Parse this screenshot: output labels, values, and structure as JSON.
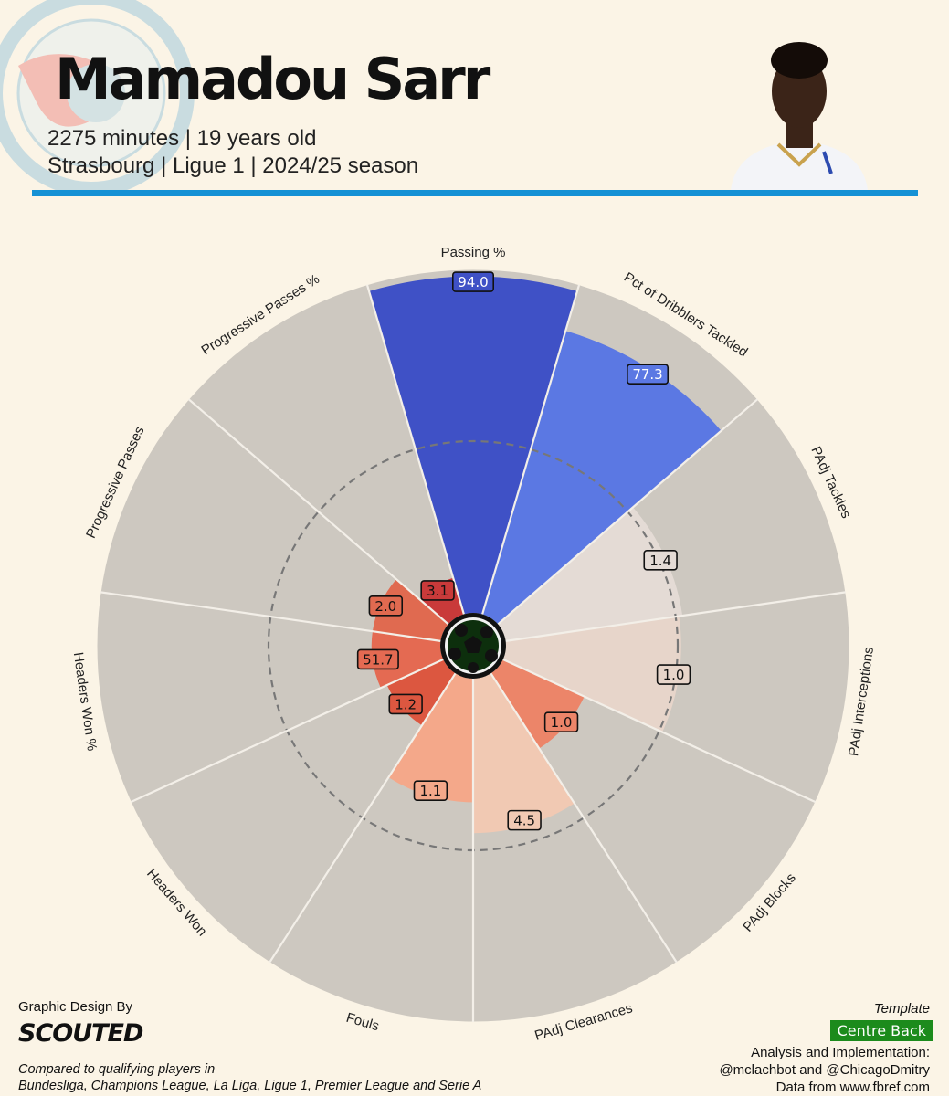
{
  "header": {
    "player_name": "Mamadou Sarr",
    "line1": "2275 minutes | 19 years old",
    "line2": "Strasbourg | Ligue 1 | 2024/25 season",
    "rule_color": "#1591d5"
  },
  "chart_data": {
    "type": "pie",
    "subtype": "radial-pizza",
    "scale": "percentile",
    "rlim": [
      0,
      100
    ],
    "reference_ring": 50,
    "params": [
      {
        "label": "Passing %",
        "value": 94.0,
        "percentile": 98,
        "color": "#3f51c6",
        "value_label": "94.0"
      },
      {
        "label": "Pct of Dribblers Tackled",
        "value": 77.3,
        "percentile": 86,
        "color": "#5b78e3",
        "value_label": "77.3"
      },
      {
        "label": "PAdj Tackles",
        "value": 1.4,
        "percentile": 52,
        "color": "#e4dbd5",
        "value_label": "1.4"
      },
      {
        "label": "PAdj Interceptions",
        "value": 1.0,
        "percentile": 51,
        "color": "#e7d5ca",
        "value_label": "1.0"
      },
      {
        "label": "PAdj Blocks",
        "value": 1.0,
        "percentile": 26,
        "color": "#ec8569",
        "value_label": "1.0"
      },
      {
        "label": "PAdj Clearances",
        "value": 4.5,
        "percentile": 45,
        "color": "#f1c9b3",
        "value_label": "4.5"
      },
      {
        "label": "Fouls",
        "value": 1.1,
        "percentile": 36,
        "color": "#f4a88a",
        "value_label": "1.1"
      },
      {
        "label": "Headers Won",
        "value": 1.2,
        "percentile": 18,
        "color": "#dc5740",
        "value_label": "1.2"
      },
      {
        "label": "Headers Won %",
        "value": 51.7,
        "percentile": 20,
        "color": "#e46a52",
        "value_label": "51.7"
      },
      {
        "label": "Progressive Passes",
        "value": 2.0,
        "percentile": 20,
        "color": "#e06a50",
        "value_label": "2.0"
      },
      {
        "label": "Progressive Passes %",
        "value": 3.1,
        "percentile": 11,
        "color": "#c93a3a",
        "value_label": "3.1"
      }
    ],
    "background_slice_color": "#cdc8c0"
  },
  "footer": {
    "credit_label": "Graphic Design By",
    "brand": "SCOUTED",
    "compared_line1": "Compared to qualifying players in",
    "compared_line2": "Bundesliga, Champions League, La Liga, Ligue 1, Premier League and Serie A",
    "template_label": "Template",
    "template_value": "Centre Back",
    "analysis_line1": "Analysis and Implementation:",
    "analysis_line2": "@mclachbot and @ChicagoDmitry",
    "analysis_line3": "Data from www.fbref.com"
  }
}
